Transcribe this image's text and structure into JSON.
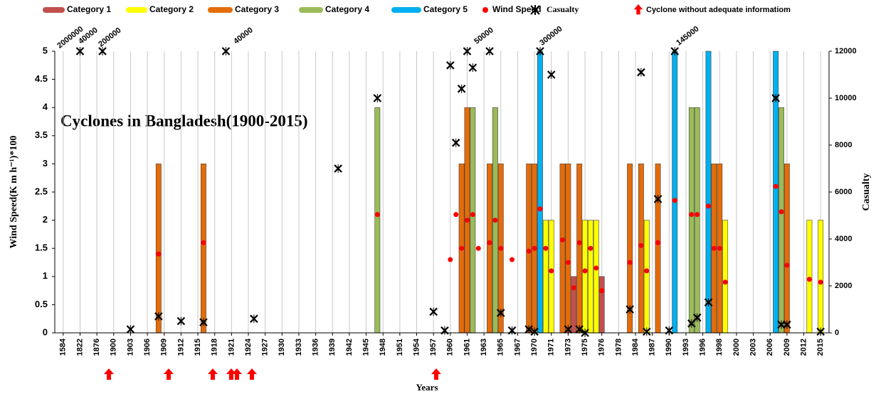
{
  "chart_data": {
    "type": "combo",
    "title": "Cyclones in Bangladesh(1900-2015)",
    "ylabel": "Wind Speed(K m h⁻¹)*100",
    "y2label": "Casualty",
    "xlabel": "Years",
    "xlim": [
      -1.5,
      136.5
    ],
    "xticks": [
      {
        "value": 0,
        "label": "1584"
      },
      {
        "value": 3,
        "label": "1822"
      },
      {
        "value": 6,
        "label": "1876"
      },
      {
        "value": 9,
        "label": "1900"
      },
      {
        "value": 12,
        "label": "1903"
      },
      {
        "value": 15,
        "label": "1906"
      },
      {
        "value": 18,
        "label": "1909"
      },
      {
        "value": 21,
        "label": "1912"
      },
      {
        "value": 24,
        "label": "1915"
      },
      {
        "value": 27,
        "label": "1918"
      },
      {
        "value": 30,
        "label": "1921"
      },
      {
        "value": 33,
        "label": "1924"
      },
      {
        "value": 36,
        "label": "1927"
      },
      {
        "value": 39,
        "label": "1930"
      },
      {
        "value": 42,
        "label": "1933"
      },
      {
        "value": 45,
        "label": "1936"
      },
      {
        "value": 48,
        "label": "1939"
      },
      {
        "value": 51,
        "label": "1942"
      },
      {
        "value": 54,
        "label": "1945"
      },
      {
        "value": 57,
        "label": "1948"
      },
      {
        "value": 60,
        "label": "1951"
      },
      {
        "value": 63,
        "label": "1954"
      },
      {
        "value": 66,
        "label": "1957"
      },
      {
        "value": 69,
        "label": "1960"
      },
      {
        "value": 72,
        "label": "1961"
      },
      {
        "value": 75,
        "label": "1963"
      },
      {
        "value": 78,
        "label": "1965"
      },
      {
        "value": 81,
        "label": "1967"
      },
      {
        "value": 84,
        "label": "1970"
      },
      {
        "value": 87,
        "label": "1971"
      },
      {
        "value": 90,
        "label": "1973"
      },
      {
        "value": 93,
        "label": "1975"
      },
      {
        "value": 96,
        "label": "1976"
      },
      {
        "value": 99,
        "label": "1978"
      },
      {
        "value": 102,
        "label": "1984"
      },
      {
        "value": 105,
        "label": "1987"
      },
      {
        "value": 108,
        "label": "1990"
      },
      {
        "value": 111,
        "label": "1993"
      },
      {
        "value": 114,
        "label": "1996"
      },
      {
        "value": 117,
        "label": "1998"
      },
      {
        "value": 120,
        "label": "2000"
      },
      {
        "value": 123,
        "label": "2003"
      },
      {
        "value": 126,
        "label": "2006"
      },
      {
        "value": 129,
        "label": "2009"
      },
      {
        "value": 132,
        "label": "2012"
      },
      {
        "value": 135,
        "label": "2015"
      }
    ],
    "ylim": [
      0,
      5
    ],
    "yticks": [
      0,
      0.5,
      1,
      1.5,
      2,
      2.5,
      3,
      3.5,
      4,
      4.5,
      5
    ],
    "y2lim": [
      0,
      12000
    ],
    "y2ticks": [
      0,
      2000,
      4000,
      6000,
      8000,
      10000,
      12000
    ],
    "grid": "x",
    "legend": "top",
    "series": [
      {
        "name": "Category 1",
        "type": "bar",
        "color": "#c0504d",
        "x": [
          91,
          96
        ],
        "values": [
          1,
          1
        ]
      },
      {
        "name": "Category 2",
        "type": "bar",
        "color": "#ffff00",
        "x": [
          86,
          87,
          93,
          94,
          95,
          104,
          118,
          133,
          135
        ],
        "values": [
          2,
          2,
          2,
          2,
          2,
          2,
          2,
          2,
          2
        ]
      },
      {
        "name": "Category 3",
        "type": "bar",
        "color": "#e46c0a",
        "x": [
          17,
          25,
          71,
          72,
          76,
          78,
          83,
          84,
          89,
          90,
          92,
          101,
          103,
          106,
          116,
          117,
          129
        ],
        "values": [
          3,
          3,
          3,
          4,
          3,
          3,
          3,
          3,
          3,
          3,
          3,
          3,
          3,
          3,
          3,
          3,
          3
        ]
      },
      {
        "name": "Category 4",
        "type": "bar",
        "color": "#9bbb59",
        "x": [
          56,
          73,
          77,
          112,
          113,
          128
        ],
        "values": [
          4,
          4,
          4,
          4,
          4,
          4
        ]
      },
      {
        "name": "Category 5",
        "type": "bar",
        "color": "#00b0f0",
        "x": [
          85,
          109,
          115,
          127
        ],
        "values": [
          5,
          5,
          5,
          5
        ]
      },
      {
        "name": "Wind Speed",
        "type": "scatter",
        "marker": "dot",
        "color": "#ff0000",
        "x": [
          17,
          25,
          56,
          69,
          70,
          71,
          72,
          73,
          74,
          76,
          77,
          78,
          80,
          83,
          84,
          85,
          86,
          87,
          89,
          90,
          91,
          92,
          93,
          94,
          95,
          96,
          101,
          103,
          104,
          106,
          109,
          112,
          113,
          115,
          116,
          117,
          118,
          127,
          128,
          129,
          133,
          135
        ],
        "values": [
          1.4,
          1.6,
          2.1,
          1.3,
          2.1,
          1.5,
          2,
          2.1,
          1.5,
          1.6,
          2,
          1.5,
          1.3,
          1.45,
          1.5,
          2.2,
          1.5,
          1.1,
          1.65,
          1.25,
          0.8,
          1.6,
          1.1,
          1.5,
          1.15,
          0.75,
          1.25,
          1.55,
          1.1,
          1.6,
          2.35,
          2.1,
          2.1,
          2.25,
          1.5,
          1.5,
          0.9,
          2.6,
          2.15,
          1.2,
          0.95,
          0.9
        ]
      },
      {
        "name": "Casualty",
        "type": "scatter",
        "marker": "x",
        "color": "#000000",
        "axis": "y2",
        "x": [
          3,
          7,
          12,
          17,
          21,
          25,
          29,
          34,
          49,
          56,
          66,
          68,
          69,
          70,
          71,
          72,
          73,
          76,
          78,
          80,
          83,
          84,
          85,
          87,
          90,
          92,
          93,
          101,
          103,
          104,
          106,
          108,
          109,
          112,
          113,
          115,
          127,
          128,
          129,
          135
        ],
        "values": [
          12000,
          12000,
          150,
          700,
          500,
          450,
          12000,
          600,
          7000,
          10000,
          900,
          100,
          11400,
          8100,
          10400,
          12000,
          11300,
          12000,
          850,
          100,
          150,
          50,
          12000,
          11000,
          150,
          150,
          0,
          1000,
          11100,
          50,
          5700,
          100,
          12000,
          400,
          650,
          1300,
          10000,
          350,
          350,
          50
        ]
      }
    ],
    "arrow_legend": "Cyclone without adequate informatiom",
    "arrow_color": "#ff0000",
    "annotations": [
      "2000000",
      "40000",
      "200000",
      "40000",
      "50000",
      "300000",
      "145000"
    ]
  }
}
